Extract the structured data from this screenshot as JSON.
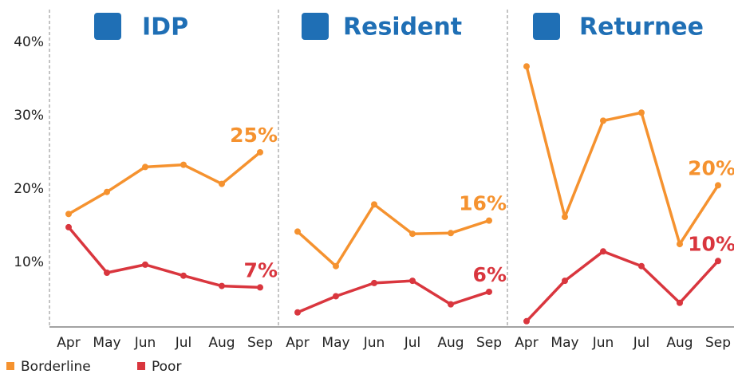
{
  "chart_data": [
    {
      "type": "line",
      "title": "IDP",
      "categories": [
        "Apr",
        "May",
        "Jun",
        "Jul",
        "Aug",
        "Sep"
      ],
      "ylim": [
        1,
        44
      ],
      "yticks": [
        {
          "value": 10,
          "label": "10%"
        },
        {
          "value": 20,
          "label": "20%"
        },
        {
          "value": 30,
          "label": "30%"
        },
        {
          "value": 40,
          "label": "40%"
        }
      ],
      "series": [
        {
          "name": "Borderline",
          "color": "#f5922f",
          "values": [
            16.6,
            19.6,
            23,
            23.3,
            20.7,
            25
          ],
          "value_labels": [
            null,
            null,
            null,
            null,
            null,
            "25%"
          ]
        },
        {
          "name": "Poor",
          "color": "#d9363e",
          "values": [
            14.8,
            8.6,
            9.7,
            8.2,
            6.8,
            6.6
          ],
          "value_labels": [
            null,
            null,
            null,
            null,
            null,
            "7%"
          ]
        }
      ]
    },
    {
      "type": "line",
      "title": "Resident",
      "categories": [
        "Apr",
        "May",
        "Jun",
        "Jul",
        "Aug",
        "Sep"
      ],
      "ylim": [
        1,
        44
      ],
      "series": [
        {
          "color": "#f5922f",
          "values": [
            14.2,
            9.5,
            17.9,
            13.9,
            14.0,
            15.7
          ],
          "value_labels": [
            null,
            null,
            null,
            null,
            null,
            "16%"
          ]
        },
        {
          "color": "#d9363e",
          "values": [
            3.2,
            5.4,
            7.2,
            7.5,
            4.3,
            6.0
          ],
          "value_labels": [
            null,
            null,
            null,
            null,
            null,
            "6%"
          ]
        }
      ]
    },
    {
      "type": "line",
      "title": "Returnee",
      "categories": [
        "Apr",
        "May",
        "Jun",
        "Jul",
        "Aug",
        "Sep"
      ],
      "ylim": [
        1,
        44
      ],
      "series": [
        {
          "color": "#f5922f",
          "values": [
            36.7,
            16.2,
            29.3,
            30.4,
            12.5,
            20.5
          ],
          "value_labels": [
            null,
            null,
            null,
            null,
            null,
            "20%"
          ]
        },
        {
          "color": "#d9363e",
          "values": [
            2.0,
            7.5,
            11.5,
            9.5,
            4.5,
            10.2
          ],
          "value_labels": [
            null,
            null,
            null,
            null,
            null,
            "10%"
          ]
        }
      ]
    }
  ]
}
